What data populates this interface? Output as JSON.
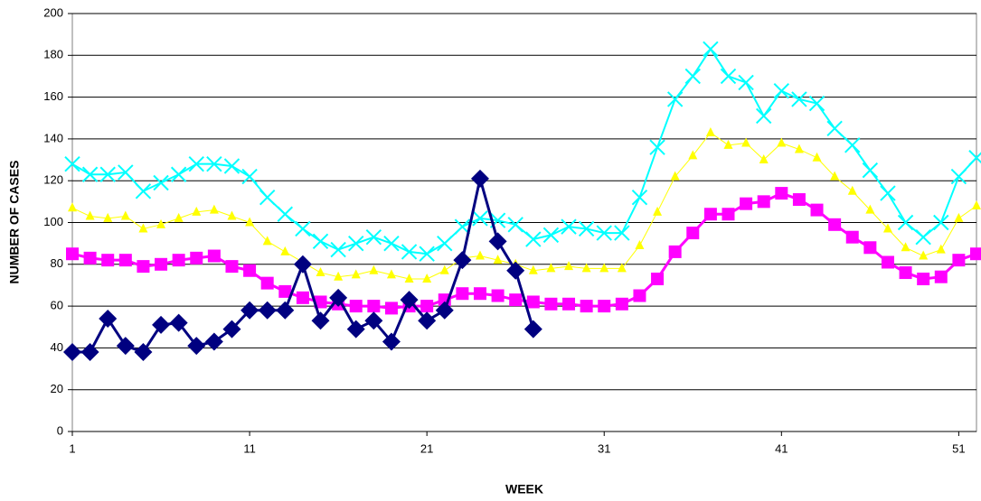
{
  "chart_data": {
    "type": "line",
    "xlabel": "WEEK",
    "ylabel": "NUMBER OF CASES",
    "x": [
      1,
      2,
      3,
      4,
      5,
      6,
      7,
      8,
      9,
      10,
      11,
      12,
      13,
      14,
      15,
      16,
      17,
      18,
      19,
      20,
      21,
      22,
      23,
      24,
      25,
      26,
      27,
      28,
      29,
      30,
      31,
      32,
      33,
      34,
      35,
      36,
      37,
      38,
      39,
      40,
      41,
      42,
      43,
      44,
      45,
      46,
      47,
      48,
      49,
      50,
      51,
      52
    ],
    "xlim": [
      1,
      52
    ],
    "xticks": [
      1,
      11,
      21,
      31,
      41,
      51
    ],
    "ylim": [
      0,
      200
    ],
    "yticks": [
      0,
      20,
      40,
      60,
      80,
      100,
      120,
      140,
      160,
      180,
      200
    ],
    "grid": true,
    "series": [
      {
        "color": "#00ffff",
        "marker": "x",
        "values": [
          128,
          123,
          123,
          124,
          115,
          119,
          123,
          128,
          128,
          127,
          122,
          112,
          104,
          97,
          91,
          87,
          90,
          93,
          90,
          86,
          85,
          90,
          98,
          102,
          101,
          99,
          92,
          94,
          98,
          97,
          95,
          95,
          112,
          136,
          159,
          170,
          183,
          170,
          167,
          151,
          163,
          159,
          157,
          145,
          137,
          125,
          114,
          100,
          93,
          100,
          122,
          131
        ]
      },
      {
        "color": "#ffff00",
        "marker": "triangle",
        "values": [
          107,
          103,
          102,
          103,
          97,
          99,
          102,
          105,
          106,
          103,
          100,
          91,
          86,
          81,
          76,
          74,
          75,
          77,
          75,
          73,
          73,
          77,
          83,
          84,
          82,
          80,
          77,
          78,
          79,
          78,
          78,
          78,
          89,
          105,
          122,
          132,
          143,
          137,
          138,
          130,
          138,
          135,
          131,
          122,
          115,
          106,
          97,
          88,
          84,
          87,
          102,
          108
        ]
      },
      {
        "color": "#ff00ff",
        "marker": "square",
        "values": [
          85,
          83,
          82,
          82,
          79,
          80,
          82,
          83,
          84,
          79,
          77,
          71,
          67,
          64,
          62,
          61,
          60,
          60,
          59,
          60,
          60,
          63,
          66,
          66,
          65,
          63,
          62,
          61,
          61,
          60,
          60,
          61,
          65,
          73,
          86,
          95,
          104,
          104,
          109,
          110,
          114,
          111,
          106,
          99,
          93,
          88,
          81,
          76,
          73,
          74,
          82,
          85
        ]
      },
      {
        "color": "#000080",
        "marker": "diamond",
        "values": [
          38,
          38,
          54,
          41,
          38,
          51,
          52,
          41,
          43,
          49,
          58,
          58,
          58,
          80,
          53,
          64,
          49,
          53,
          43,
          63,
          53,
          58,
          82,
          121,
          91,
          77,
          49,
          null,
          null,
          null,
          null,
          null,
          null,
          null,
          null,
          null,
          null,
          null,
          null,
          null,
          null,
          null,
          null,
          null,
          null,
          null,
          null,
          null,
          null,
          null,
          null,
          null
        ]
      }
    ]
  }
}
